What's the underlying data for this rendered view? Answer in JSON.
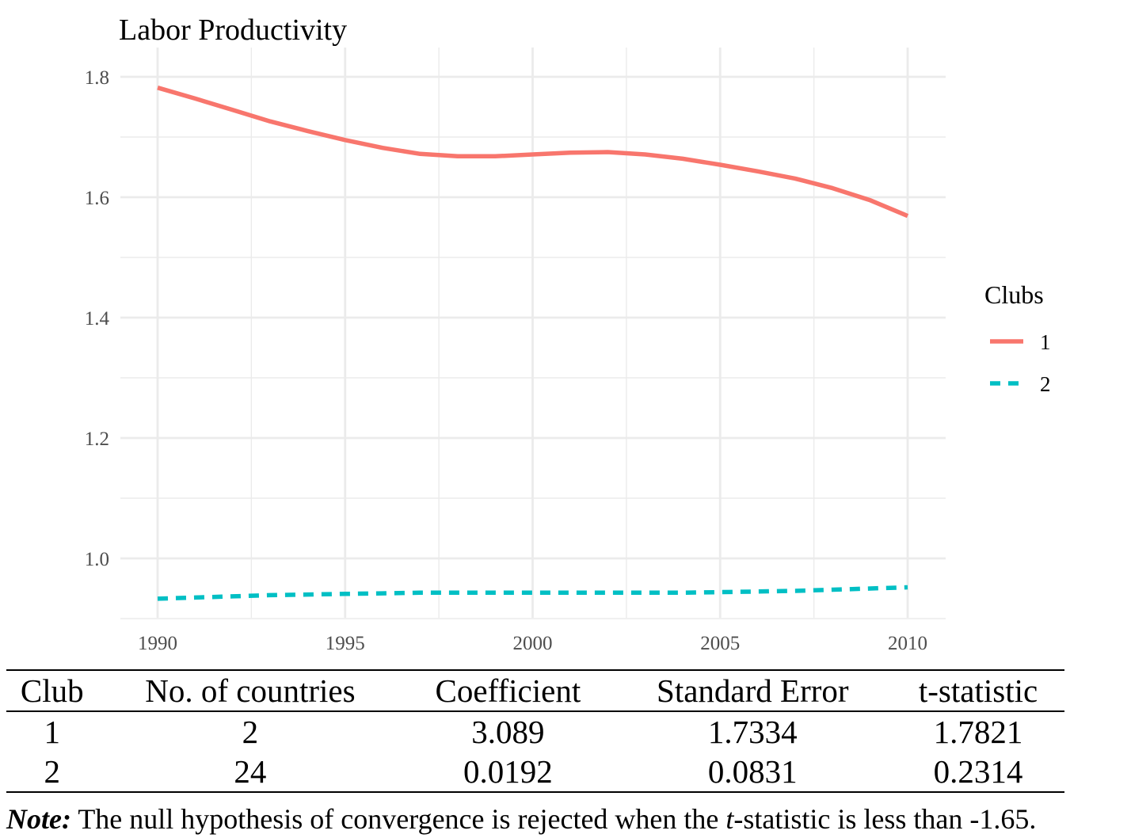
{
  "chart_data": {
    "type": "line",
    "title": "Labor Productivity",
    "xlabel": "",
    "ylabel": "",
    "xlim": [
      1990,
      2010
    ],
    "ylim": [
      0.9,
      1.8
    ],
    "x_ticks": [
      1990,
      1995,
      2000,
      2005,
      2010
    ],
    "y_ticks": [
      "1.0",
      "1.2",
      "1.4",
      "1.6",
      "1.8"
    ],
    "grid": true,
    "legend": {
      "title": "Clubs",
      "position": "right"
    },
    "series": [
      {
        "name": "1",
        "color": "#F8766D",
        "dash": "solid",
        "x": [
          1990,
          1991,
          1992,
          1993,
          1994,
          1995,
          1996,
          1997,
          1998,
          1999,
          2000,
          2001,
          2002,
          2003,
          2004,
          2005,
          2006,
          2007,
          2008,
          2009,
          2010
        ],
        "y": [
          1.782,
          1.764,
          1.745,
          1.726,
          1.71,
          1.695,
          1.682,
          1.672,
          1.668,
          1.668,
          1.671,
          1.674,
          1.675,
          1.671,
          1.664,
          1.654,
          1.643,
          1.631,
          1.615,
          1.595,
          1.569
        ]
      },
      {
        "name": "2",
        "color": "#00BFC4",
        "dash": "dashed",
        "x": [
          1990,
          1991,
          1992,
          1993,
          1994,
          1995,
          1996,
          1997,
          1998,
          1999,
          2000,
          2001,
          2002,
          2003,
          2004,
          2005,
          2006,
          2007,
          2008,
          2009,
          2010
        ],
        "y": [
          0.933,
          0.935,
          0.937,
          0.939,
          0.94,
          0.941,
          0.942,
          0.943,
          0.943,
          0.943,
          0.943,
          0.943,
          0.943,
          0.943,
          0.943,
          0.944,
          0.945,
          0.946,
          0.948,
          0.95,
          0.952
        ]
      }
    ]
  },
  "table": {
    "headers": [
      "Club",
      "No. of countries",
      "Coefficient",
      "Standard Error",
      "t-statistic"
    ],
    "rows": [
      [
        "1",
        "2",
        "3.089",
        "1.7334",
        "1.7821"
      ],
      [
        "2",
        "24",
        "0.0192",
        "0.0831",
        "0.2314"
      ]
    ]
  },
  "note": {
    "label": "Note:",
    "text_before": " The null hypothesis of convergence is rejected when the ",
    "italic_word": "t",
    "text_after": "-statistic is less than -1.65."
  }
}
